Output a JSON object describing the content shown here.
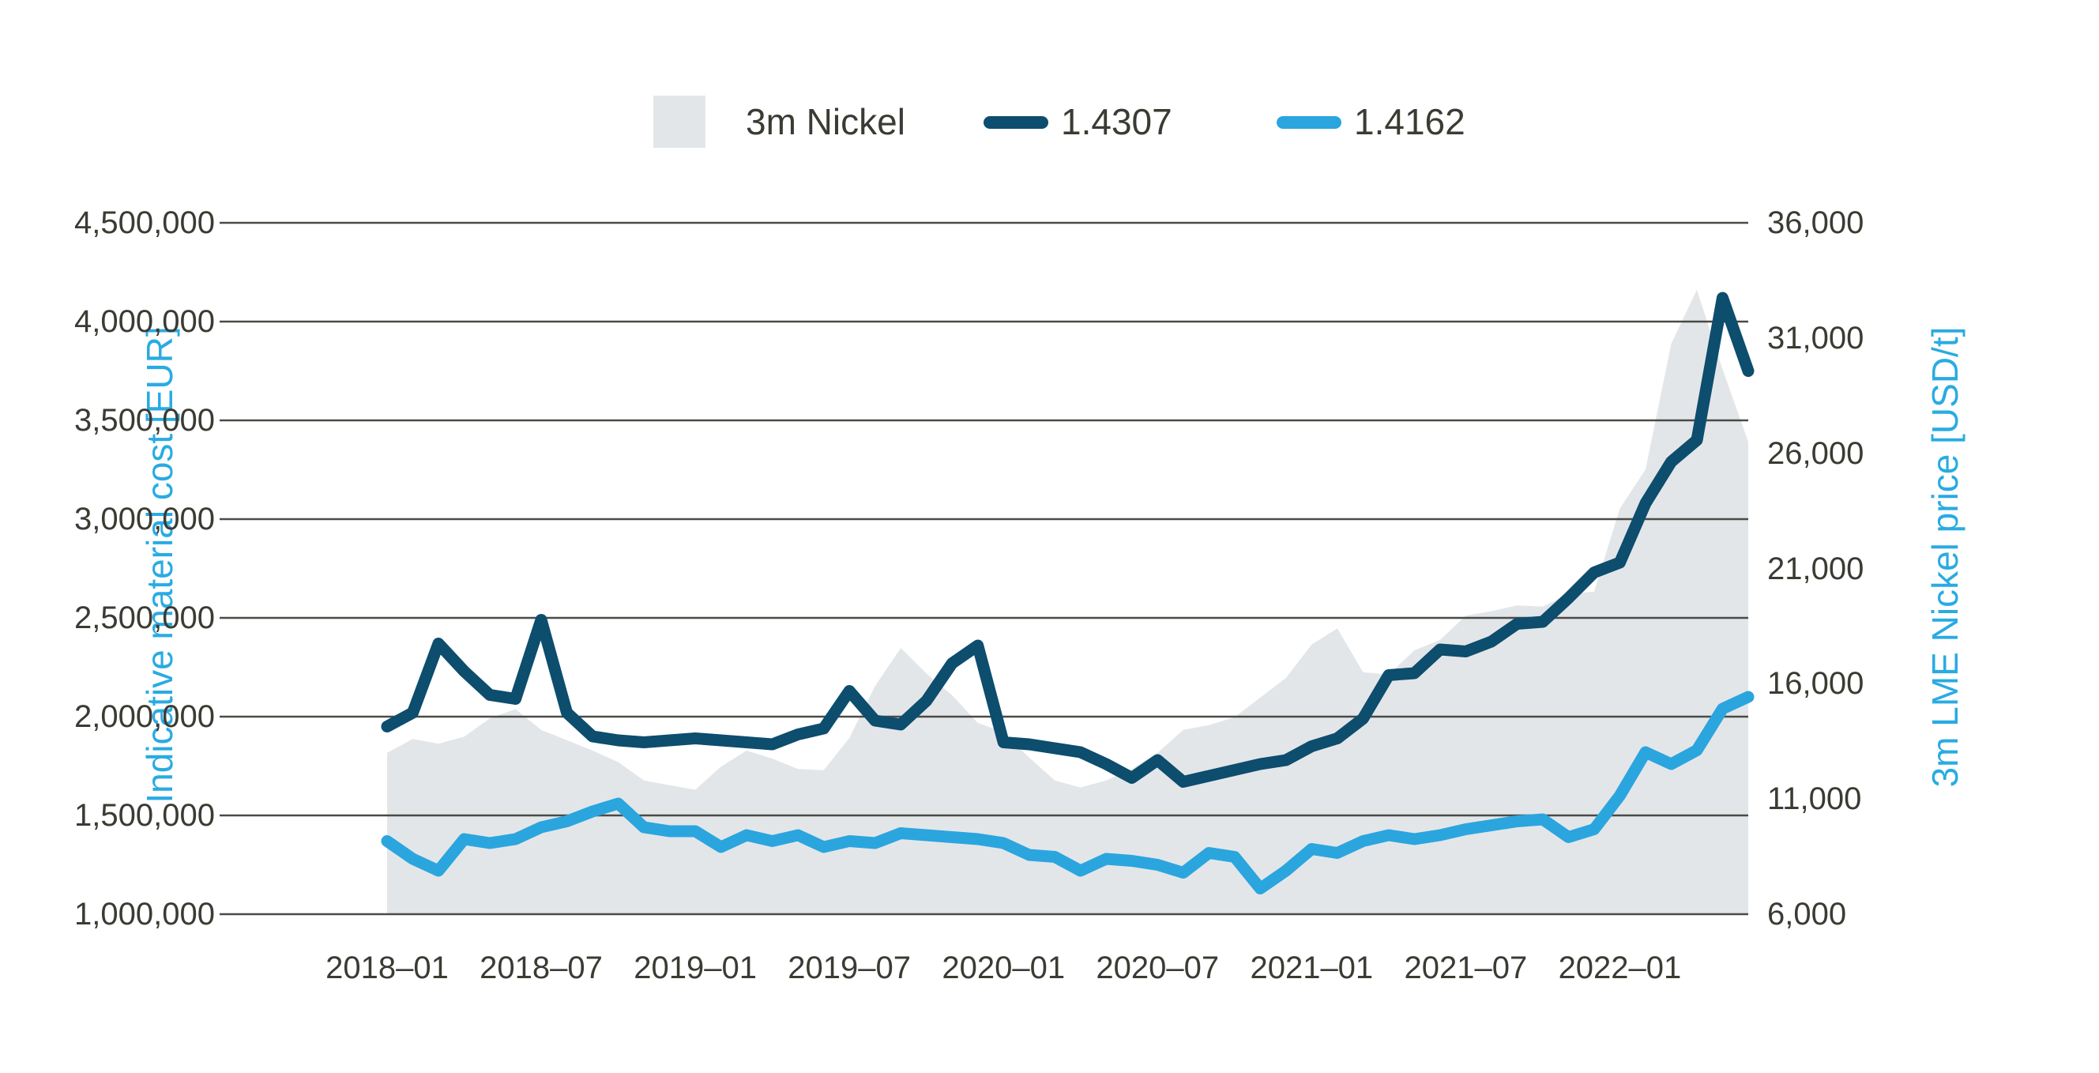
{
  "legend": {
    "items": [
      {
        "label": "3m Nickel",
        "swatch": "area-square",
        "color": "#e3e6e9"
      },
      {
        "label": "1.4307",
        "swatch": "line",
        "color": "#0d4d6e"
      },
      {
        "label": "1.4162",
        "swatch": "line",
        "color": "#2ba5de"
      }
    ]
  },
  "axes": {
    "left": {
      "title": "Indicative material cost [EUR]",
      "tick_labels": [
        "4,500,000",
        "4,000,000",
        "3,500,000",
        "3,000,000",
        "2,500,000",
        "2,000,000",
        "1,500,000",
        "1,000,000"
      ],
      "tick_values": [
        4500000,
        4000000,
        3500000,
        3000000,
        2500000,
        2000000,
        1500000,
        1000000
      ]
    },
    "right": {
      "title": "3m LME Nickel price [USD/t]",
      "tick_labels": [
        "36,000",
        "31,000",
        "26,000",
        "21,000",
        "16,000",
        "11,000",
        "6,000"
      ],
      "tick_values": [
        36000,
        31000,
        26000,
        21000,
        16000,
        11000,
        6000
      ]
    },
    "x": {
      "tick_labels": [
        "2018–01",
        "2018–07",
        "2019–01",
        "2019–07",
        "2020–01",
        "2020–07",
        "2021–01",
        "2021–07",
        "2022–01"
      ],
      "tick_month_index": [
        0,
        6,
        12,
        18,
        24,
        30,
        36,
        42,
        48
      ]
    }
  },
  "colors": {
    "area": "#e3e6e9",
    "dark_line": "#0d4d6e",
    "light_line": "#2ba5de",
    "gridline": "#4b4b46",
    "tick_text": "#3b3b33",
    "axis_title_text": "#29abe2",
    "background": "#ffffff"
  },
  "chart_data": {
    "type": "combo",
    "subtype": "area+line+line",
    "title": "",
    "xlabel": "",
    "legend_position": "top-center",
    "grid": "horizontal",
    "x": [
      "2018-01",
      "2018-02",
      "2018-03",
      "2018-04",
      "2018-05",
      "2018-06",
      "2018-07",
      "2018-08",
      "2018-09",
      "2018-10",
      "2018-11",
      "2018-12",
      "2019-01",
      "2019-02",
      "2019-03",
      "2019-04",
      "2019-05",
      "2019-06",
      "2019-07",
      "2019-08",
      "2019-09",
      "2019-10",
      "2019-11",
      "2019-12",
      "2020-01",
      "2020-02",
      "2020-03",
      "2020-04",
      "2020-05",
      "2020-06",
      "2020-07",
      "2020-08",
      "2020-09",
      "2020-10",
      "2020-11",
      "2020-12",
      "2021-01",
      "2021-02",
      "2021-03",
      "2021-04",
      "2021-05",
      "2021-06",
      "2021-07",
      "2021-08",
      "2021-09",
      "2021-10",
      "2021-11",
      "2021-12",
      "2022-01",
      "2022-02",
      "2022-03",
      "2022-04",
      "2022-05",
      "2022-06"
    ],
    "left_axis": {
      "label": "Indicative material cost [EUR]",
      "ylim": [
        1000000,
        4500000
      ],
      "step": 500000
    },
    "right_axis": {
      "label": "3m LME Nickel price [USD/t]",
      "ylim": [
        6000,
        36000
      ],
      "step": 5000
    },
    "series": [
      {
        "name": "3m Nickel",
        "type": "area",
        "axis": "right",
        "unit": "USD/t",
        "color": "#e3e6e9",
        "values": [
          13000,
          13600,
          13400,
          13700,
          14500,
          14900,
          14000,
          13550,
          13100,
          12600,
          11800,
          11600,
          11400,
          12400,
          13100,
          12750,
          12300,
          12250,
          13650,
          15900,
          17550,
          16450,
          15500,
          14300,
          13900,
          12800,
          11800,
          11500,
          11800,
          12300,
          13000,
          14000,
          14200,
          14550,
          15400,
          16250,
          17700,
          18400,
          16500,
          16400,
          17450,
          17900,
          18950,
          19150,
          19400,
          19350,
          19900,
          20000,
          23600,
          25300,
          30750,
          33100,
          29650,
          26500
        ]
      },
      {
        "name": "1.4307",
        "type": "line",
        "axis": "left",
        "unit": "EUR",
        "color": "#0d4d6e",
        "values": [
          1950000,
          2020000,
          2370000,
          2230000,
          2110000,
          2090000,
          2490000,
          2020000,
          1900000,
          1880000,
          1870000,
          1880000,
          1890000,
          1880000,
          1870000,
          1860000,
          1910000,
          1940000,
          2130000,
          1980000,
          1960000,
          2080000,
          2270000,
          2360000,
          1870000,
          1860000,
          1840000,
          1820000,
          1760000,
          1690000,
          1780000,
          1670000,
          1700000,
          1730000,
          1760000,
          1780000,
          1850000,
          1890000,
          1990000,
          2210000,
          2220000,
          2340000,
          2330000,
          2380000,
          2470000,
          2480000,
          2600000,
          2730000,
          2780000,
          3080000,
          3290000,
          3400000,
          4120000,
          3750000
        ]
      },
      {
        "name": "1.4162",
        "type": "line",
        "axis": "left",
        "unit": "EUR",
        "color": "#2ba5de",
        "values": [
          1370000,
          1280000,
          1220000,
          1380000,
          1360000,
          1380000,
          1440000,
          1470000,
          1520000,
          1560000,
          1440000,
          1420000,
          1420000,
          1340000,
          1400000,
          1370000,
          1400000,
          1340000,
          1370000,
          1360000,
          1410000,
          1400000,
          1390000,
          1380000,
          1360000,
          1300000,
          1290000,
          1220000,
          1280000,
          1270000,
          1250000,
          1210000,
          1310000,
          1290000,
          1130000,
          1220000,
          1330000,
          1310000,
          1370000,
          1400000,
          1380000,
          1400000,
          1430000,
          1450000,
          1470000,
          1480000,
          1390000,
          1430000,
          1600000,
          1820000,
          1760000,
          1830000,
          2040000,
          2100000
        ]
      }
    ]
  }
}
